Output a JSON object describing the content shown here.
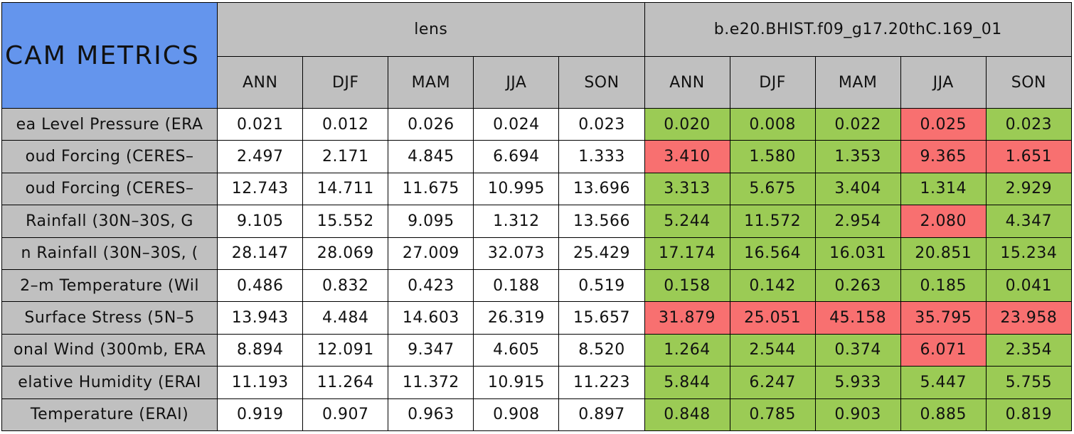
{
  "table": {
    "title": "CAM METRICS",
    "groups": [
      "lens",
      "b.e20.BHIST.f09_g17.20thC.169_01"
    ],
    "seasons": [
      "ANN",
      "DJF",
      "MAM",
      "JJA",
      "SON"
    ],
    "good_color": "#9bcb55",
    "bad_color": "#f87070",
    "rows": [
      {
        "label": "ea Level Pressure (ERA",
        "lens": [
          "0.021",
          "0.012",
          "0.026",
          "0.024",
          "0.023"
        ],
        "bhist": [
          "0.020",
          "0.008",
          "0.022",
          "0.025",
          "0.023"
        ],
        "bhist_worse": [
          false,
          false,
          false,
          true,
          false
        ]
      },
      {
        "label": "oud Forcing (CERES–",
        "lens": [
          "2.497",
          "2.171",
          "4.845",
          "6.694",
          "1.333"
        ],
        "bhist": [
          "3.410",
          "1.580",
          "1.353",
          "9.365",
          "1.651"
        ],
        "bhist_worse": [
          true,
          false,
          false,
          true,
          true
        ]
      },
      {
        "label": "oud Forcing (CERES–",
        "lens": [
          "12.743",
          "14.711",
          "11.675",
          "10.995",
          "13.696"
        ],
        "bhist": [
          "3.313",
          "5.675",
          "3.404",
          "1.314",
          "2.929"
        ],
        "bhist_worse": [
          false,
          false,
          false,
          false,
          false
        ]
      },
      {
        "label": "Rainfall (30N–30S, G",
        "lens": [
          "9.105",
          "15.552",
          "9.095",
          "1.312",
          "13.566"
        ],
        "bhist": [
          "5.244",
          "11.572",
          "2.954",
          "2.080",
          "4.347"
        ],
        "bhist_worse": [
          false,
          false,
          false,
          true,
          false
        ]
      },
      {
        "label": "n Rainfall (30N–30S, (",
        "lens": [
          "28.147",
          "28.069",
          "27.009",
          "32.073",
          "25.429"
        ],
        "bhist": [
          "17.174",
          "16.564",
          "16.031",
          "20.851",
          "15.234"
        ],
        "bhist_worse": [
          false,
          false,
          false,
          false,
          false
        ]
      },
      {
        "label": "2–m Temperature (Wil",
        "lens": [
          "0.486",
          "0.832",
          "0.423",
          "0.188",
          "0.519"
        ],
        "bhist": [
          "0.158",
          "0.142",
          "0.263",
          "0.185",
          "0.041"
        ],
        "bhist_worse": [
          false,
          false,
          false,
          false,
          false
        ]
      },
      {
        "label": "Surface Stress (5N–5",
        "lens": [
          "13.943",
          "4.484",
          "14.603",
          "26.319",
          "15.657"
        ],
        "bhist": [
          "31.879",
          "25.051",
          "45.158",
          "35.795",
          "23.958"
        ],
        "bhist_worse": [
          true,
          true,
          true,
          true,
          true
        ]
      },
      {
        "label": "onal Wind (300mb, ERA",
        "lens": [
          "8.894",
          "12.091",
          "9.347",
          "4.605",
          "8.520"
        ],
        "bhist": [
          "1.264",
          "2.544",
          "0.374",
          "6.071",
          "2.354"
        ],
        "bhist_worse": [
          false,
          false,
          false,
          true,
          false
        ]
      },
      {
        "label": "elative Humidity (ERAI",
        "lens": [
          "11.193",
          "11.264",
          "11.372",
          "10.915",
          "11.223"
        ],
        "bhist": [
          "5.844",
          "6.247",
          "5.933",
          "5.447",
          "5.755"
        ],
        "bhist_worse": [
          false,
          false,
          false,
          false,
          false
        ]
      },
      {
        "label": "Temperature (ERAI)",
        "lens": [
          "0.919",
          "0.907",
          "0.963",
          "0.908",
          "0.897"
        ],
        "bhist": [
          "0.848",
          "0.785",
          "0.903",
          "0.885",
          "0.819"
        ],
        "bhist_worse": [
          false,
          false,
          false,
          false,
          false
        ]
      }
    ]
  }
}
